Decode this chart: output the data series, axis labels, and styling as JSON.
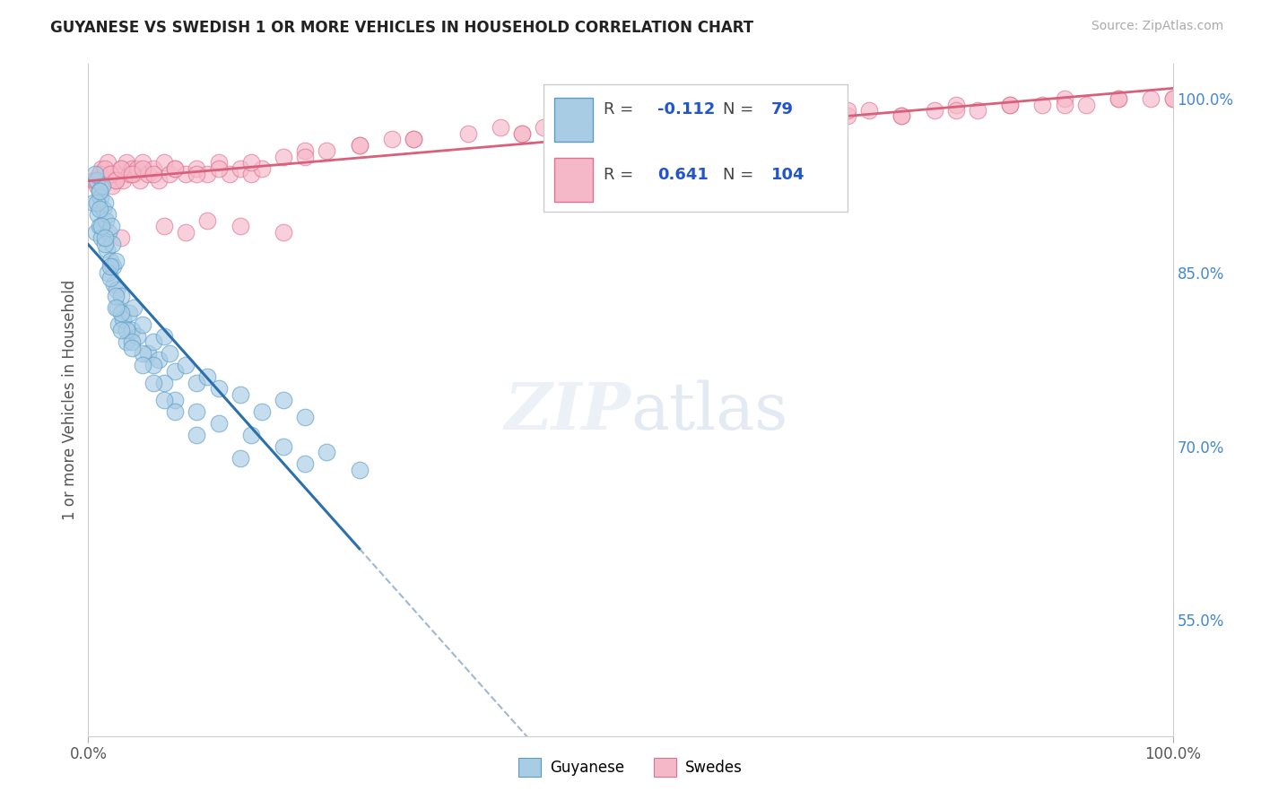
{
  "title": "GUYANESE VS SWEDISH 1 OR MORE VEHICLES IN HOUSEHOLD CORRELATION CHART",
  "source": "Source: ZipAtlas.com",
  "ylabel": "1 or more Vehicles in Household",
  "ylabel_right_ticks": [
    55.0,
    70.0,
    85.0,
    100.0
  ],
  "legend_r_blue": "-0.112",
  "legend_n_blue": "79",
  "legend_r_pink": "0.641",
  "legend_n_pink": "104",
  "blue_color": "#a8cce4",
  "blue_edge_color": "#5a9ec8",
  "pink_color": "#f5b8c8",
  "pink_edge_color": "#e07090",
  "trend_blue_color": "#2c6fad",
  "trend_pink_color": "#d9607a",
  "dashed_color": "#a0b8d0",
  "background_color": "#ffffff",
  "grid_color": "#cccccc",
  "xlim": [
    0,
    100
  ],
  "ylim": [
    45,
    103
  ],
  "guyanese_x": [
    0.5,
    0.7,
    0.8,
    0.9,
    1.0,
    1.0,
    1.1,
    1.2,
    1.3,
    1.4,
    1.5,
    1.6,
    1.7,
    1.8,
    1.9,
    2.0,
    2.1,
    2.2,
    2.3,
    2.4,
    2.5,
    2.6,
    2.7,
    2.8,
    3.0,
    3.2,
    3.5,
    3.8,
    4.0,
    4.2,
    4.5,
    5.0,
    5.5,
    6.0,
    6.5,
    7.0,
    7.5,
    8.0,
    9.0,
    10.0,
    11.0,
    12.0,
    14.0,
    16.0,
    18.0,
    20.0,
    0.6,
    0.8,
    1.0,
    1.2,
    1.5,
    1.8,
    2.0,
    2.5,
    3.0,
    3.5,
    4.0,
    5.0,
    6.0,
    7.0,
    8.0,
    10.0,
    12.0,
    15.0,
    18.0,
    22.0,
    25.0,
    1.0,
    1.5,
    2.0,
    2.5,
    3.0,
    4.0,
    5.0,
    6.0,
    7.0,
    8.0,
    10.0,
    14.0,
    20.0
  ],
  "guyanese_y": [
    91.0,
    88.5,
    93.0,
    90.0,
    92.0,
    89.0,
    91.5,
    88.0,
    92.5,
    90.5,
    91.0,
    89.5,
    87.0,
    90.0,
    88.5,
    86.0,
    89.0,
    87.5,
    85.5,
    84.0,
    86.0,
    83.5,
    82.0,
    80.5,
    83.0,
    81.0,
    79.0,
    81.5,
    80.0,
    82.0,
    79.5,
    80.5,
    78.0,
    79.0,
    77.5,
    79.5,
    78.0,
    76.5,
    77.0,
    75.5,
    76.0,
    75.0,
    74.5,
    73.0,
    74.0,
    72.5,
    93.5,
    91.0,
    90.5,
    89.0,
    87.5,
    85.0,
    84.5,
    83.0,
    81.5,
    80.0,
    79.0,
    78.0,
    77.0,
    75.5,
    74.0,
    73.0,
    72.0,
    71.0,
    70.0,
    69.5,
    68.0,
    92.0,
    88.0,
    85.5,
    82.0,
    80.0,
    78.5,
    77.0,
    75.5,
    74.0,
    73.0,
    71.0,
    69.0,
    68.5
  ],
  "swedes_x": [
    0.5,
    0.8,
    1.0,
    1.2,
    1.5,
    1.8,
    2.0,
    2.2,
    2.5,
    2.8,
    3.0,
    3.2,
    3.5,
    3.8,
    4.0,
    4.2,
    4.5,
    4.8,
    5.0,
    5.5,
    6.0,
    6.5,
    7.0,
    7.5,
    8.0,
    9.0,
    10.0,
    11.0,
    12.0,
    13.0,
    14.0,
    15.0,
    16.0,
    18.0,
    20.0,
    22.0,
    25.0,
    28.0,
    30.0,
    35.0,
    38.0,
    40.0,
    42.0,
    45.0,
    48.0,
    50.0,
    52.0,
    55.0,
    58.0,
    60.0,
    62.0,
    65.0,
    68.0,
    70.0,
    72.0,
    75.0,
    78.0,
    80.0,
    82.0,
    85.0,
    88.0,
    90.0,
    92.0,
    95.0,
    98.0,
    100.0,
    0.6,
    1.0,
    1.5,
    2.0,
    2.5,
    3.0,
    4.0,
    5.0,
    6.0,
    8.0,
    10.0,
    12.0,
    15.0,
    20.0,
    25.0,
    30.0,
    40.0,
    45.0,
    50.0,
    55.0,
    60.0,
    65.0,
    70.0,
    75.0,
    80.0,
    85.0,
    90.0,
    95.0,
    100.0,
    3.0,
    7.0,
    9.0,
    11.0,
    14.0,
    18.0
  ],
  "swedes_y": [
    93.0,
    92.5,
    93.5,
    94.0,
    93.0,
    94.5,
    93.5,
    92.5,
    93.0,
    93.5,
    94.0,
    93.0,
    94.5,
    93.5,
    94.0,
    93.5,
    94.0,
    93.0,
    94.5,
    93.5,
    94.0,
    93.0,
    94.5,
    93.5,
    94.0,
    93.5,
    94.0,
    93.5,
    94.5,
    93.5,
    94.0,
    93.5,
    94.0,
    95.0,
    95.5,
    95.5,
    96.0,
    96.5,
    96.5,
    97.0,
    97.5,
    97.0,
    97.5,
    97.5,
    98.0,
    97.5,
    98.0,
    97.5,
    98.0,
    98.0,
    98.5,
    98.0,
    98.5,
    98.5,
    99.0,
    98.5,
    99.0,
    99.5,
    99.0,
    99.5,
    99.5,
    100.0,
    99.5,
    100.0,
    100.0,
    100.0,
    93.0,
    93.5,
    94.0,
    93.5,
    93.0,
    94.0,
    93.5,
    94.0,
    93.5,
    94.0,
    93.5,
    94.0,
    94.5,
    95.0,
    96.0,
    96.5,
    97.0,
    97.5,
    98.0,
    97.5,
    98.0,
    98.5,
    99.0,
    98.5,
    99.0,
    99.5,
    99.5,
    100.0,
    100.0,
    88.0,
    89.0,
    88.5,
    89.5,
    89.0,
    88.5
  ]
}
